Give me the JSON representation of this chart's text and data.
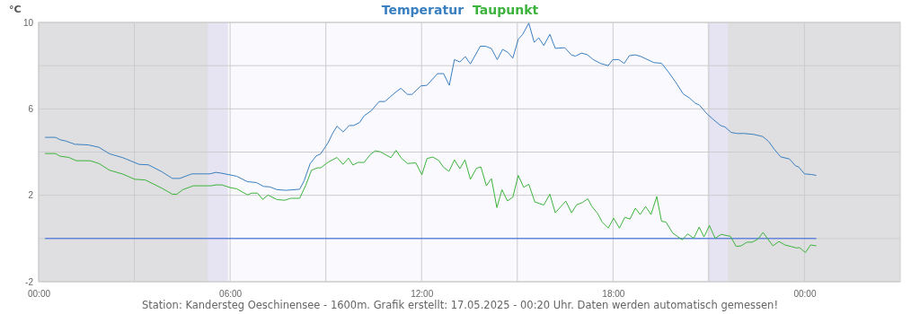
{
  "chart_data": {
    "type": "line",
    "ylabel": "°C",
    "legend": "top",
    "grid": true,
    "marker": "none",
    "line_style": "solid",
    "xlim": [
      0,
      27
    ],
    "xticks": [
      {
        "value": 0,
        "label": "00:00"
      },
      {
        "value": 3,
        "label": null
      },
      {
        "value": 6,
        "label": "06:00"
      },
      {
        "value": 9,
        "label": null
      },
      {
        "value": 12,
        "label": "12:00"
      },
      {
        "value": 15,
        "label": null
      },
      {
        "value": 18,
        "label": "18:00"
      },
      {
        "value": 21,
        "label": null
      },
      {
        "value": 24,
        "label": "00:00"
      }
    ],
    "ylim": [
      -2,
      10
    ],
    "yticks": [
      -2,
      {
        "value": 0,
        "label": null
      },
      2,
      {
        "value": 4,
        "label": null
      },
      6,
      {
        "value": 8,
        "label": null
      },
      10
    ],
    "bands": [
      {
        "axis": "x",
        "from": 5.3,
        "to": 5.93,
        "color": "#e6e3f2"
      },
      {
        "axis": "x",
        "from": 5.93,
        "to": 20.97,
        "color": "#faf9fe"
      },
      {
        "axis": "x",
        "from": 20.97,
        "to": 21.6,
        "color": "#e6e3f2"
      }
    ],
    "ref_lines": [
      {
        "axis": "y",
        "value": 0,
        "color": "#2f5fe0"
      }
    ],
    "series": [
      {
        "name": "Temperatur",
        "color": "#3a7fc0",
        "x": [
          0.2,
          0.53,
          0.67,
          0.85,
          1.14,
          1.56,
          1.89,
          2.22,
          2.64,
          3.15,
          3.44,
          3.86,
          4.19,
          4.42,
          4.8,
          5.36,
          5.55,
          5.74,
          6.21,
          6.54,
          6.82,
          7.05,
          7.24,
          7.47,
          7.76,
          8.18,
          8.32,
          8.51,
          8.7,
          8.84,
          9.07,
          9.21,
          9.35,
          9.54,
          9.73,
          9.87,
          10.06,
          10.2,
          10.43,
          10.67,
          10.85,
          11.18,
          11.35,
          11.56,
          11.7,
          11.98,
          12.17,
          12.5,
          12.69,
          12.87,
          13.03,
          13.2,
          13.37,
          13.53,
          13.84,
          14.0,
          14.19,
          14.37,
          14.54,
          14.7,
          14.86,
          15.03,
          15.17,
          15.36,
          15.53,
          15.67,
          15.83,
          16.02,
          16.19,
          16.49,
          16.7,
          16.82,
          17.01,
          17.19,
          17.38,
          17.61,
          17.85,
          17.99,
          18.18,
          18.35,
          18.51,
          18.7,
          18.88,
          19.28,
          19.52,
          19.73,
          19.96,
          20.2,
          20.39,
          20.57,
          20.71,
          20.95,
          21.14,
          21.37,
          21.51,
          21.7,
          21.89,
          22.12,
          22.4,
          22.69,
          22.87,
          23.06,
          23.25,
          23.53,
          23.72,
          23.81,
          24.0,
          24.23,
          24.37
        ],
        "values": [
          4.68,
          4.68,
          4.57,
          4.51,
          4.36,
          4.33,
          4.22,
          3.92,
          3.74,
          3.43,
          3.41,
          3.09,
          2.78,
          2.78,
          2.99,
          2.99,
          3.06,
          3.02,
          2.88,
          2.63,
          2.59,
          2.41,
          2.39,
          2.26,
          2.23,
          2.28,
          2.67,
          3.47,
          3.82,
          3.92,
          4.43,
          4.86,
          5.2,
          4.93,
          5.23,
          5.23,
          5.37,
          5.68,
          5.92,
          6.34,
          6.34,
          6.76,
          6.95,
          6.67,
          6.67,
          7.06,
          7.09,
          7.63,
          7.63,
          7.09,
          8.28,
          8.17,
          8.42,
          8.08,
          8.9,
          8.9,
          8.79,
          8.28,
          8.75,
          8.62,
          8.35,
          9.22,
          9.45,
          9.97,
          9.08,
          9.29,
          8.93,
          9.45,
          8.8,
          8.83,
          8.49,
          8.44,
          8.58,
          8.51,
          8.28,
          8.1,
          8.0,
          8.28,
          8.28,
          8.1,
          8.46,
          8.5,
          8.42,
          8.14,
          8.11,
          7.72,
          7.24,
          6.69,
          6.51,
          6.27,
          6.17,
          5.76,
          5.51,
          5.23,
          5.16,
          4.91,
          4.86,
          4.86,
          4.82,
          4.72,
          4.5,
          4.12,
          3.78,
          3.68,
          3.36,
          3.32,
          2.99,
          2.96,
          2.92
        ]
      },
      {
        "name": "Taupunkt",
        "color": "#3cb33c",
        "x": [
          0.2,
          0.53,
          0.67,
          0.95,
          1.18,
          1.61,
          1.89,
          2.22,
          2.64,
          3.01,
          3.34,
          3.86,
          4.19,
          4.33,
          4.52,
          4.85,
          5.41,
          5.55,
          5.74,
          6.02,
          6.21,
          6.54,
          6.68,
          6.86,
          7.02,
          7.19,
          7.47,
          7.71,
          7.9,
          8.18,
          8.37,
          8.55,
          8.74,
          8.84,
          9.07,
          9.21,
          9.35,
          9.54,
          9.71,
          9.85,
          10.01,
          10.2,
          10.39,
          10.55,
          10.71,
          11.04,
          11.2,
          11.37,
          11.56,
          11.82,
          12.01,
          12.17,
          12.35,
          12.54,
          12.69,
          12.86,
          13.03,
          13.2,
          13.36,
          13.53,
          13.72,
          13.86,
          14.03,
          14.19,
          14.36,
          14.52,
          14.69,
          14.86,
          15.03,
          15.2,
          15.36,
          15.55,
          15.83,
          16.02,
          16.19,
          16.52,
          16.7,
          16.86,
          17.05,
          17.21,
          17.33,
          17.52,
          17.66,
          17.85,
          18.02,
          18.2,
          18.37,
          18.53,
          18.7,
          18.85,
          19.02,
          19.19,
          19.37,
          19.52,
          19.66,
          19.87,
          20.17,
          20.34,
          20.53,
          20.7,
          20.85,
          21.02,
          21.2,
          21.39,
          21.68,
          21.86,
          22.01,
          22.2,
          22.36,
          22.54,
          22.7,
          23.01,
          23.2,
          23.39,
          23.58,
          23.75,
          23.84,
          24.03,
          24.19,
          24.37
        ],
        "values": [
          3.93,
          3.93,
          3.81,
          3.75,
          3.6,
          3.6,
          3.47,
          3.16,
          2.98,
          2.74,
          2.71,
          2.33,
          2.05,
          2.05,
          2.26,
          2.44,
          2.44,
          2.48,
          2.48,
          2.35,
          2.3,
          2.02,
          2.1,
          2.1,
          1.81,
          2.01,
          1.8,
          1.77,
          1.86,
          1.86,
          2.46,
          3.16,
          3.27,
          3.27,
          3.53,
          3.64,
          3.75,
          3.43,
          3.72,
          3.4,
          3.52,
          3.52,
          3.88,
          4.06,
          4.01,
          3.74,
          4.08,
          3.71,
          3.47,
          3.5,
          2.95,
          3.7,
          3.77,
          3.61,
          3.29,
          3.11,
          3.64,
          3.23,
          3.64,
          2.74,
          3.25,
          3.31,
          2.44,
          2.77,
          1.43,
          2.26,
          1.74,
          1.91,
          2.92,
          2.37,
          2.51,
          1.69,
          1.55,
          2.05,
          1.19,
          1.73,
          1.19,
          1.56,
          1.67,
          1.84,
          1.5,
          1.15,
          0.76,
          0.48,
          0.94,
          0.48,
          0.98,
          0.9,
          1.4,
          1.11,
          1.48,
          1.11,
          1.94,
          0.8,
          0.76,
          0.25,
          -0.06,
          0.21,
          0.01,
          0.53,
          0.07,
          0.6,
          0.01,
          0.19,
          0.1,
          -0.37,
          -0.34,
          -0.17,
          -0.17,
          -0.03,
          0.28,
          -0.34,
          -0.14,
          -0.3,
          -0.37,
          -0.44,
          -0.42,
          -0.65,
          -0.3,
          -0.34
        ]
      }
    ],
    "annotations": [
      "Station: Kandersteg Oeschinensee - 1600m. Grafik erstellt: 17.05.2025 - 00:20 Uhr. Daten werden automatisch gemessen!"
    ]
  }
}
